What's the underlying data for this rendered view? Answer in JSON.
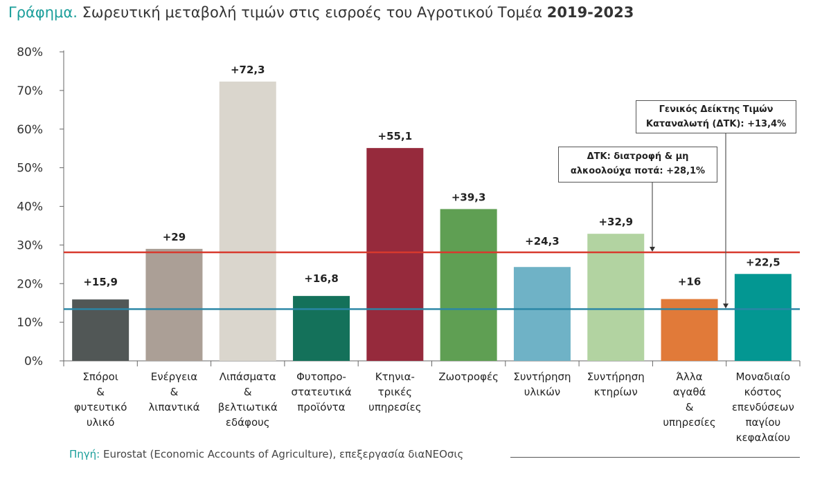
{
  "title": {
    "prefix": "Γράφημα.",
    "main": "Σωρευτική μεταβολή τιμών στις εισροές του Αγροτικού Τομέα",
    "years": "2019-2023"
  },
  "source": {
    "label": "Πηγή:",
    "text": "Eurostat (Economic Accounts of Agriculture), επεξεργασία διαNEOσις"
  },
  "annotations": {
    "cpi_general": [
      "Γενικός Δείκτης Τιμών",
      "Καταναλωτή (ΔΤΚ): +13,4%"
    ],
    "cpi_food": [
      "ΔΤΚ: διατροφή & μη",
      "αλκοολούχα ποτά: +28,1%"
    ]
  },
  "chart_data": {
    "type": "bar",
    "title": "Σωρευτική μεταβολή τιμών στις εισροές του Αγροτικού Τομέα 2019-2023",
    "ylim": [
      0,
      80
    ],
    "yticks": [
      "0%",
      "10%",
      "20%",
      "30%",
      "40%",
      "50%",
      "60%",
      "70%",
      "80%"
    ],
    "categories": [
      [
        "Σπόροι",
        "&",
        "φυτευτικό",
        "υλικό"
      ],
      [
        "Ενέργεια",
        "&",
        "λιπαντικά"
      ],
      [
        "Λιπάσματα",
        "&",
        "βελτιωτικά",
        "εδάφους"
      ],
      [
        "Φυτοπρο-",
        "στατευτικά",
        "προϊόντα"
      ],
      [
        "Κτηνια-",
        "τρικές",
        "υπηρεσίες"
      ],
      [
        "Ζωοτροφές"
      ],
      [
        "Συντήρηση",
        "υλικών"
      ],
      [
        "Συντήρηση",
        "κτηρίων"
      ],
      [
        "Άλλα",
        "αγαθά",
        "&",
        "υπηρεσίες"
      ],
      [
        "Μοναδιαίο",
        "κόστος",
        "επενδύσεων",
        "παγίου",
        "κεφαλαίου"
      ]
    ],
    "values": [
      15.9,
      29,
      72.3,
      16.8,
      55.1,
      39.3,
      24.3,
      32.9,
      16,
      22.5
    ],
    "labels": [
      "+15,9",
      "+29",
      "+72,3",
      "+16,8",
      "+55,1",
      "+39,3",
      "+24,3",
      "+32,9",
      "+16",
      "+22,5"
    ],
    "colors": [
      "#515756",
      "#ab9f96",
      "#dad6cd",
      "#14715a",
      "#962a3c",
      "#5f9f53",
      "#6fb2c6",
      "#b2d3a1",
      "#e17a39",
      "#039792"
    ],
    "reference_lines": [
      {
        "name": "ΔΤΚ: διατροφή & μη αλκοολούχα ποτά",
        "value": 28.1,
        "color": "#d8392d"
      },
      {
        "name": "Γενικός Δείκτης Τιμών Καταναλωτή (ΔΤΚ)",
        "value": 13.4,
        "color": "#2a86a6"
      }
    ]
  }
}
